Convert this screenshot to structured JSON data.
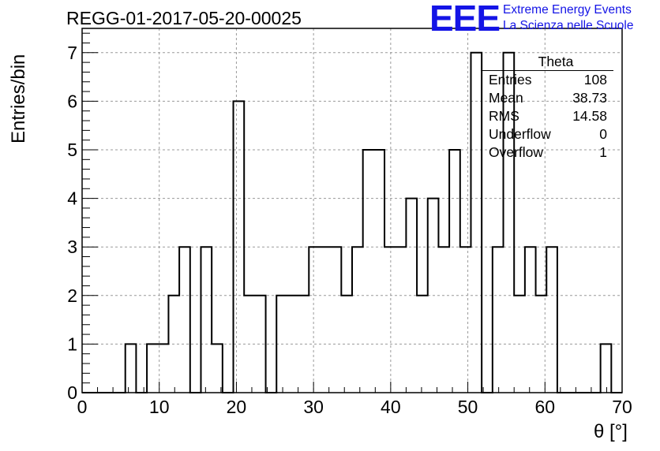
{
  "header": {
    "title": "REGG-01-2017-05-20-00025",
    "logo_text": "EEE",
    "brand_line1": "Extreme Energy Events",
    "brand_line2": "La Scienza nelle Scuole",
    "brand_color": "#1414e6"
  },
  "stats_box": {
    "title": "Theta",
    "rows": [
      {
        "label": "Entries",
        "value": "108"
      },
      {
        "label": "Mean",
        "value": "38.73"
      },
      {
        "label": "RMS",
        "value": "14.58"
      },
      {
        "label": "Underflow",
        "value": "0"
      },
      {
        "label": "Overflow",
        "value": "1"
      }
    ]
  },
  "chart_data": {
    "type": "bar",
    "histogram": true,
    "bin_width": 1.4,
    "bin_low": 0,
    "xlabel": "θ [°]",
    "ylabel": "Entries/bin",
    "xlim": [
      0,
      70
    ],
    "ylim": [
      0,
      7.5
    ],
    "xticks": [
      0,
      10,
      20,
      30,
      40,
      50,
      60,
      70
    ],
    "yticks": [
      0,
      1,
      2,
      3,
      4,
      5,
      6,
      7
    ],
    "grid": true,
    "values": [
      0,
      0,
      0,
      0,
      1,
      0,
      1,
      1,
      2,
      3,
      0,
      3,
      1,
      0,
      6,
      2,
      2,
      0,
      2,
      2,
      2,
      3,
      3,
      3,
      2,
      3,
      5,
      5,
      3,
      3,
      4,
      2,
      4,
      3,
      5,
      3,
      7,
      0,
      3,
      7,
      2,
      3,
      2,
      3,
      0,
      0,
      0,
      0,
      1,
      0
    ]
  }
}
